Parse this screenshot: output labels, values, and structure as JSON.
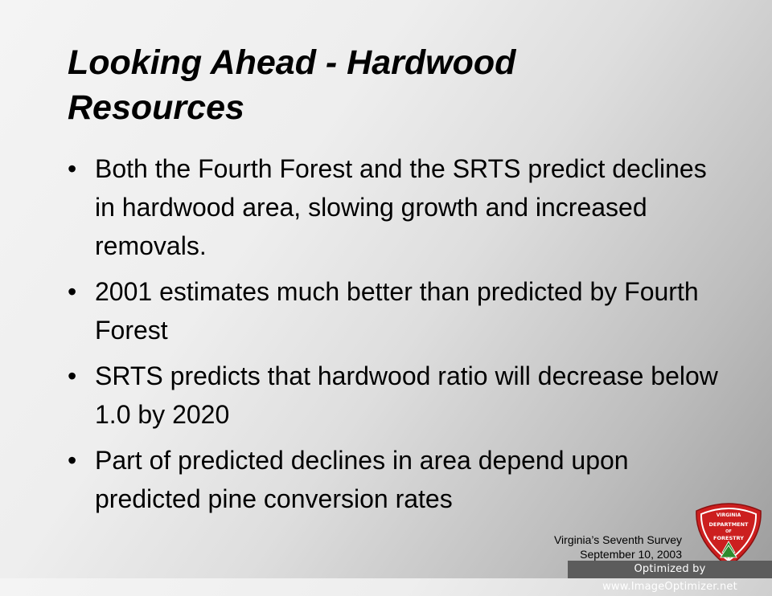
{
  "slide": {
    "title_line1": "Looking Ahead - Hardwood",
    "title_line2": "Resources",
    "bullet_symbol": "•",
    "bullets": [
      "Both the Fourth Forest and the SRTS predict declines in hardwood area, slowing growth and increased removals.",
      "2001 estimates much better than predicted by Fourth Forest",
      "SRTS predicts that hardwood ratio will decrease below 1.0 by 2020",
      "Part of predicted declines in area depend upon predicted pine conversion rates"
    ]
  },
  "footer": {
    "line1": "Virginia’s Seventh Survey",
    "line2": "September 10, 2003"
  },
  "logo": {
    "line1": "VIRGINIA",
    "line2": "DEPARTMENT",
    "line3": "OF",
    "line4": "FORESTRY",
    "colors": {
      "red": "#cc1f1f",
      "white": "#ffffff",
      "green": "#2e8b2e"
    },
    "icon": "shield-badge-icon"
  },
  "watermark": {
    "text": "Optimized by www.ImageOptimizer.net"
  }
}
